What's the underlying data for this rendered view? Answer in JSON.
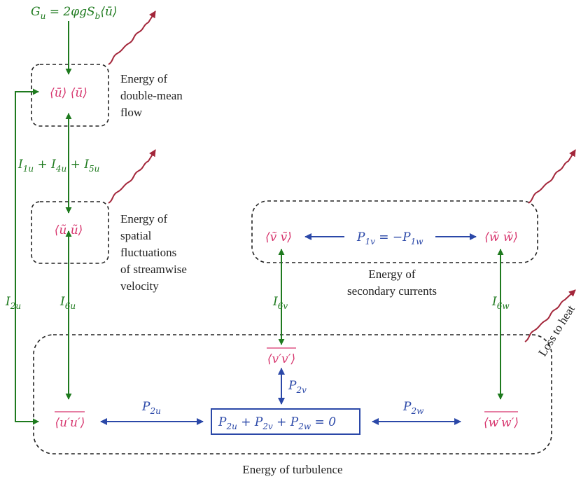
{
  "colors": {
    "green": "#1e7a1e",
    "blue": "#2b48a8",
    "red": "#d6336c",
    "wavy": "#a3263a",
    "dash": "#222222",
    "text": "#222222"
  },
  "terms": {
    "gu_lhs": "G",
    "gu_lhs_sub": "u",
    "gu_rhs": " = 2φgS",
    "gu_rhs_sub": "b",
    "gu_tail": "⟨ū⟩",
    "mean_energy": "⟨ū⟩ ⟨ū⟩",
    "spatial_u": "⟨ũ ũ⟩",
    "spatial_v": "⟨ṽ ṽ⟩",
    "spatial_w": "⟨w̃ w̃⟩",
    "turb_u": "⟨u′u′⟩",
    "turb_v": "⟨v′v′⟩",
    "turb_w": "⟨w′w′⟩"
  },
  "labels": {
    "i145_a": "I",
    "i145_a_sub": "1u",
    "i145_b": " + I",
    "i145_b_sub": "4u",
    "i145_c": " + I",
    "i145_c_sub": "5u",
    "i2u": "I",
    "i2u_sub": "2u",
    "i6u": "I",
    "i6u_sub": "6u",
    "i6v": "I",
    "i6v_sub": "6v",
    "i6w": "I",
    "i6w_sub": "6w",
    "p1_a": "P",
    "p1_a_sub": "1v",
    "p1_b": " = −P",
    "p1_b_sub": "1w",
    "p2u": "P",
    "p2u_sub": "2u",
    "p2v": "P",
    "p2v_sub": "2v",
    "p2w": "P",
    "p2w_sub": "2w",
    "psum_a": "P",
    "psum_a_sub": "2u",
    "psum_b": " + P",
    "psum_b_sub": "2v",
    "psum_c": " + P",
    "psum_c_sub": "2w",
    "psum_d": " = 0"
  },
  "captions": {
    "mean_line1": "Energy of",
    "mean_line2": "double-mean",
    "mean_line3": "flow",
    "spatial_line1": "Energy of",
    "spatial_line2": "spatial",
    "spatial_line3": "fluctuations",
    "spatial_line4": "of streamwise",
    "spatial_line5": "velocity",
    "secondary_line1": "Energy of",
    "secondary_line2": "secondary currents",
    "turbulence": "Energy of turbulence",
    "loss": "Loss to heat"
  }
}
